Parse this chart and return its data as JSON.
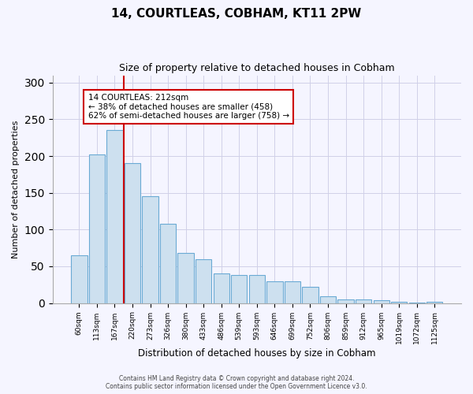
{
  "title1": "14, COURTLEAS, COBHAM, KT11 2PW",
  "title2": "Size of property relative to detached houses in Cobham",
  "xlabel": "Distribution of detached houses by size in Cobham",
  "ylabel": "Number of detached properties",
  "categories": [
    "60sqm",
    "113sqm",
    "167sqm",
    "220sqm",
    "273sqm",
    "326sqm",
    "380sqm",
    "433sqm",
    "486sqm",
    "539sqm",
    "593sqm",
    "646sqm",
    "699sqm",
    "752sqm",
    "806sqm",
    "859sqm",
    "912sqm",
    "965sqm",
    "1019sqm",
    "1072sqm",
    "1125sqm"
  ],
  "values": [
    65,
    202,
    235,
    191,
    145,
    108,
    68,
    60,
    40,
    38,
    38,
    30,
    30,
    22,
    9,
    5,
    5,
    4,
    2,
    1,
    2
  ],
  "bar_color": "#cde0ef",
  "bar_edge_color": "#6aaad4",
  "vline_color": "#cc0000",
  "vline_index": 2.5,
  "annotation_text": "14 COURTLEAS: 212sqm\n← 38% of detached houses are smaller (458)\n62% of semi-detached houses are larger (758) →",
  "annotation_box_color": "#ffffff",
  "annotation_box_edge": "#cc0000",
  "footer1": "Contains HM Land Registry data © Crown copyright and database right 2024.",
  "footer2": "Contains public sector information licensed under the Open Government Licence v3.0.",
  "ylim": [
    0,
    310
  ],
  "yticks": [
    0,
    50,
    100,
    150,
    200,
    250,
    300
  ],
  "background_color": "#f5f5ff",
  "grid_color": "#d0d0e8"
}
